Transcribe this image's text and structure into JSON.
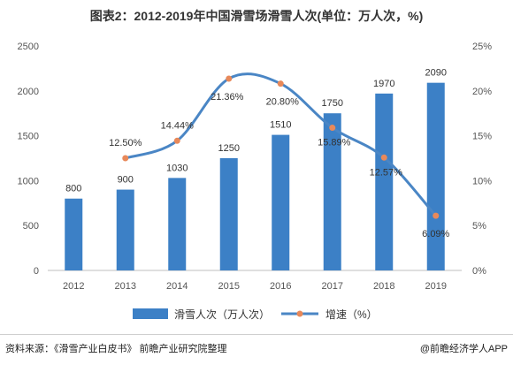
{
  "chart_data": {
    "type": "bar+line",
    "title": "图表2：2012-2019年中国滑雪场滑雪人次(单位：万人次，%)",
    "categories": [
      "2012",
      "2013",
      "2014",
      "2015",
      "2016",
      "2017",
      "2018",
      "2019"
    ],
    "series": [
      {
        "name": "滑雪人次（万人次）",
        "type": "bar",
        "axis": "left",
        "color": "#3c80c6",
        "values": [
          800,
          900,
          1030,
          1250,
          1510,
          1750,
          1970,
          2090
        ],
        "labels": [
          "800",
          "900",
          "1030",
          "1250",
          "1510",
          "1750",
          "1970",
          "2090"
        ]
      },
      {
        "name": "增速（%）",
        "type": "line",
        "axis": "right",
        "color": "#4a86c5",
        "marker_color": "#e8895a",
        "values": [
          null,
          12.5,
          14.44,
          21.36,
          20.8,
          15.89,
          12.57,
          6.09
        ],
        "labels": [
          "",
          "12.50%",
          "14.44%",
          "21.36%",
          "20.80%",
          "15.89%",
          "12.57%",
          "6.09%"
        ]
      }
    ],
    "y_left": {
      "ylim": [
        0,
        2500
      ],
      "ticks": [
        "0",
        "500",
        "1000",
        "1500",
        "2000",
        "2500"
      ]
    },
    "y_right": {
      "ylim": [
        0,
        25
      ],
      "ticks": [
        "0%",
        "5%",
        "10%",
        "15%",
        "20%",
        "25%"
      ]
    },
    "legend_position": "bottom-center",
    "grid": false
  },
  "footer": {
    "source": "资料来源：《滑雪产业白皮书》 前瞻产业研究院整理",
    "credit": "@前瞻经济学人APP"
  }
}
